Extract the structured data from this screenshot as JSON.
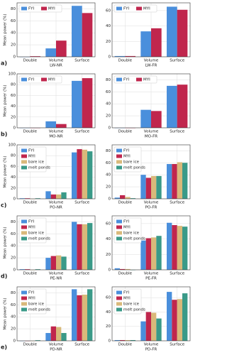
{
  "chart_data": [
    {
      "type": "bar",
      "panel_label": "a)",
      "xlabel": "LW-NR",
      "ylabel": "Mean power (%)",
      "categories": [
        "Double",
        "Volume",
        "Surface"
      ],
      "series": [
        {
          "name": "FYI",
          "color": "#4a8fdc",
          "values": [
            0,
            14,
            85
          ]
        },
        {
          "name": "MYI",
          "color": "#c0264d",
          "values": [
            1,
            27,
            73
          ]
        }
      ],
      "ylim": [
        0,
        90
      ],
      "yticks": [
        0,
        20,
        40,
        60,
        80
      ],
      "grid": true,
      "legend": "upper left"
    },
    {
      "type": "bar",
      "xlabel": "LW-FR",
      "categories": [
        "Double",
        "Volume",
        "Surface"
      ],
      "series": [
        {
          "name": "FYI",
          "color": "#4a8fdc",
          "values": [
            1,
            33,
            65
          ]
        },
        {
          "name": "MYI",
          "color": "#c0264d",
          "values": [
            1,
            37,
            61
          ]
        }
      ],
      "ylim": [
        0,
        70
      ],
      "yticks": [
        0,
        20,
        40,
        60
      ],
      "grid": true,
      "legend": "upper left"
    },
    {
      "type": "bar",
      "panel_label": "b)",
      "xlabel": "MO-NR",
      "ylabel": "Mean power (%)",
      "categories": [
        "Double",
        "Volume",
        "Surface"
      ],
      "series": [
        {
          "name": "FYI",
          "color": "#4a8fdc",
          "values": [
            0,
            12,
            87
          ]
        },
        {
          "name": "MYI",
          "color": "#c0264d",
          "values": [
            0,
            7,
            92
          ]
        }
      ],
      "ylim": [
        0,
        100
      ],
      "yticks": [
        0,
        20,
        40,
        60,
        80,
        100
      ],
      "grid": true,
      "legend": "upper left"
    },
    {
      "type": "bar",
      "xlabel": "MO-FR",
      "categories": [
        "Double",
        "Volume",
        "Surface"
      ],
      "series": [
        {
          "name": "FYI",
          "color": "#4a8fdc",
          "values": [
            0,
            30,
            70
          ]
        },
        {
          "name": "MYI",
          "color": "#c0264d",
          "values": [
            0,
            28,
            72
          ]
        }
      ],
      "ylim": [
        0,
        90
      ],
      "yticks": [
        0,
        20,
        40,
        60,
        80
      ],
      "grid": true,
      "legend": "upper left"
    },
    {
      "type": "bar",
      "panel_label": "c)",
      "xlabel": "PO-NR",
      "ylabel": "Mean power (%)",
      "categories": [
        "Double",
        "Volume",
        "Surface"
      ],
      "series": [
        {
          "name": "FYI",
          "color": "#4a8fdc",
          "values": [
            1,
            14,
            86
          ]
        },
        {
          "name": "MYI",
          "color": "#c0264d",
          "values": [
            1,
            8,
            92
          ]
        },
        {
          "name": "bare ice",
          "color": "#d9b97a",
          "values": [
            0,
            8,
            91
          ]
        },
        {
          "name": "melt ponds",
          "color": "#3a9a88",
          "values": [
            1,
            12,
            88
          ]
        }
      ],
      "ylim": [
        0,
        100
      ],
      "yticks": [
        0,
        20,
        40,
        60,
        80,
        100
      ],
      "grid": true,
      "legend": "upper left"
    },
    {
      "type": "bar",
      "xlabel": "PO-FR",
      "categories": [
        "Double",
        "Volume",
        "Surface"
      ],
      "series": [
        {
          "name": "FYI",
          "color": "#4a8fdc",
          "values": [
            2,
            40,
            58
          ]
        },
        {
          "name": "MYI",
          "color": "#c0264d",
          "values": [
            6,
            35,
            58
          ]
        },
        {
          "name": "bare ice",
          "color": "#d9b97a",
          "values": [
            3,
            38,
            61
          ]
        },
        {
          "name": "melt ponds",
          "color": "#3a9a88",
          "values": [
            1,
            38,
            60
          ]
        }
      ],
      "ylim": [
        0,
        90
      ],
      "yticks": [
        0,
        20,
        40,
        60,
        80
      ],
      "grid": true,
      "legend": "upper left"
    },
    {
      "type": "bar",
      "panel_label": "d)",
      "xlabel": "PE-NR",
      "ylabel": "Mean power (%)",
      "categories": [
        "Double",
        "Volume",
        "Surface"
      ],
      "series": [
        {
          "name": "FYI",
          "color": "#4a8fdc",
          "values": [
            1,
            20,
            80
          ]
        },
        {
          "name": "MYI",
          "color": "#c0264d",
          "values": [
            1,
            23,
            76
          ]
        },
        {
          "name": "bare ice",
          "color": "#d9b97a",
          "values": [
            0,
            24,
            76
          ]
        },
        {
          "name": "melt ponds",
          "color": "#3a9a88",
          "values": [
            1,
            22,
            78
          ]
        }
      ],
      "ylim": [
        0,
        90
      ],
      "yticks": [
        0,
        20,
        40,
        60,
        80
      ],
      "grid": true,
      "legend": "upper left"
    },
    {
      "type": "bar",
      "xlabel": "PE-FR",
      "categories": [
        "Double",
        "Volume",
        "Surface"
      ],
      "series": [
        {
          "name": "FYI",
          "color": "#4a8fdc",
          "values": [
            2,
            38,
            61
          ]
        },
        {
          "name": "MYI",
          "color": "#c0264d",
          "values": [
            1,
            41,
            58
          ]
        },
        {
          "name": "bare ice",
          "color": "#d9b97a",
          "values": [
            1,
            42,
            57
          ]
        },
        {
          "name": "melt ponds",
          "color": "#3a9a88",
          "values": [
            0,
            44,
            56
          ]
        }
      ],
      "ylim": [
        0,
        70
      ],
      "yticks": [
        0,
        20,
        40,
        60
      ],
      "grid": true,
      "legend": "upper left"
    },
    {
      "type": "bar",
      "panel_label": "e)",
      "xlabel": "PD-NR",
      "ylabel": "Mean power (%)",
      "categories": [
        "Double",
        "Volume",
        "Surface"
      ],
      "series": [
        {
          "name": "FYI",
          "color": "#4a8fdc",
          "values": [
            0,
            13,
            86
          ]
        },
        {
          "name": "MYI",
          "color": "#c0264d",
          "values": [
            0,
            24,
            76
          ]
        },
        {
          "name": "bare ice",
          "color": "#d9b97a",
          "values": [
            0,
            23,
            77
          ]
        },
        {
          "name": "melt ponds",
          "color": "#3a9a88",
          "values": [
            1,
            13,
            86
          ]
        }
      ],
      "ylim": [
        0,
        90
      ],
      "yticks": [
        0,
        20,
        40,
        60,
        80
      ],
      "grid": true,
      "legend": "upper left"
    },
    {
      "type": "bar",
      "xlabel": "PD-FR",
      "categories": [
        "Double",
        "Volume",
        "Surface"
      ],
      "series": [
        {
          "name": "FYI",
          "color": "#4a8fdc",
          "values": [
            1,
            27,
            68
          ]
        },
        {
          "name": "MYI",
          "color": "#c0264d",
          "values": [
            1,
            40,
            57
          ]
        },
        {
          "name": "bare ice",
          "color": "#d9b97a",
          "values": [
            1,
            39,
            58
          ]
        },
        {
          "name": "melt ponds",
          "color": "#3a9a88",
          "values": [
            1,
            31,
            66
          ]
        }
      ],
      "ylim": [
        0,
        75
      ],
      "yticks": [
        0,
        20,
        40,
        60
      ],
      "grid": true,
      "legend": "upper left"
    }
  ]
}
